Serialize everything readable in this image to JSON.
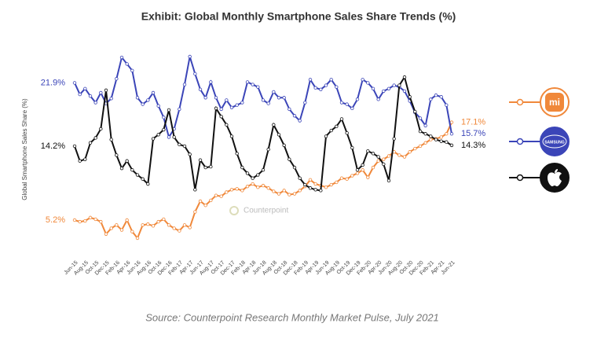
{
  "chart_data": {
    "type": "line",
    "title": "Exhibit: Global Monthly Smartphone Sales Share Trends (%)",
    "y_label": "Global Smartphone Sales Share (%)",
    "watermark": "Counterpoint",
    "source": "Source: Counterpoint Research Monthly Market Pulse, July 2021",
    "categories": [
      "Jun-15",
      null,
      "Aug-15",
      null,
      "Oct-15",
      null,
      "Dec-15",
      null,
      "Feb-16",
      null,
      "Apr-16",
      null,
      "Jun-16",
      null,
      "Aug-16",
      null,
      "Oct-16",
      null,
      "Dec-16",
      null,
      "Feb-17",
      null,
      "Apr-17",
      null,
      "Jun-17",
      null,
      "Aug-17",
      null,
      "Oct-17",
      null,
      "Dec-17",
      null,
      "Feb-18",
      null,
      "Apr-18",
      null,
      "Jun-18",
      null,
      "Aug-18",
      null,
      "Oct-18",
      null,
      "Dec-18",
      null,
      "Feb-19",
      null,
      "Apr-19",
      null,
      "Jun-19",
      null,
      "Aug-19",
      null,
      "Oct-19",
      null,
      "Dec-19",
      null,
      "Feb-20",
      null,
      "Apr-20",
      null,
      "Jun-20",
      null,
      "Aug-20",
      null,
      "Oct-20",
      null,
      "Dec-20",
      null,
      "Feb-21",
      null,
      "Apr-21",
      null,
      "Jun-21"
    ],
    "series": [
      {
        "name": "mi",
        "color": "#f0883a",
        "values": [
          5.2,
          5.0,
          5.1,
          5.5,
          5.3,
          5.0,
          3.5,
          4.2,
          4.6,
          4.0,
          5.2,
          3.8,
          3.0,
          4.6,
          4.7,
          4.5,
          5.0,
          5.3,
          4.6,
          4.2,
          3.9,
          4.6,
          4.3,
          6.2,
          7.5,
          7.0,
          7.6,
          8.2,
          8.1,
          8.6,
          8.9,
          9.0,
          8.8,
          9.3,
          9.6,
          9.2,
          9.4,
          9.1,
          8.7,
          8.4,
          8.8,
          8.3,
          8.4,
          8.8,
          9.3,
          10.1,
          9.6,
          9.4,
          9.2,
          9.5,
          9.8,
          10.3,
          10.2,
          10.6,
          10.9,
          11.3,
          10.4,
          11.6,
          12.4,
          12.6,
          13.0,
          13.5,
          13.1,
          12.9,
          13.5,
          13.9,
          14.2,
          14.6,
          15.0,
          15.1,
          15.3,
          15.7,
          17.1
        ],
        "value_labels": {
          "0": "5.2%",
          "72": "17.1%"
        }
      },
      {
        "name": "SAMSUNG",
        "color": "#3b45b8",
        "values": [
          21.9,
          20.5,
          21.2,
          20.3,
          19.5,
          20.7,
          19.4,
          20.0,
          22.4,
          25.0,
          24.2,
          23.4,
          20.1,
          19.3,
          19.8,
          20.7,
          19.1,
          17.7,
          15.3,
          16.3,
          18.7,
          21.7,
          25.1,
          23.0,
          21.1,
          20.1,
          22.0,
          20.1,
          18.7,
          19.8,
          18.9,
          19.2,
          19.5,
          22.0,
          21.7,
          21.4,
          19.8,
          19.4,
          20.8,
          20.1,
          20.1,
          18.7,
          17.9,
          17.3,
          19.5,
          22.3,
          21.3,
          21.1,
          21.6,
          22.3,
          21.4,
          19.5,
          19.3,
          18.8,
          19.9,
          22.3,
          21.9,
          21.2,
          19.9,
          20.9,
          21.2,
          21.6,
          21.4,
          20.9,
          19.7,
          18.3,
          17.6,
          16.7,
          19.9,
          20.4,
          20.2,
          19.2,
          15.7
        ],
        "value_labels": {
          "0": "21.9%",
          "72": "15.7%"
        }
      },
      {
        "color": "#111111",
        "values": [
          14.2,
          12.4,
          12.6,
          14.6,
          15.2,
          16.3,
          21.0,
          15.0,
          13.1,
          11.5,
          12.4,
          11.3,
          10.7,
          10.2,
          9.6,
          15.1,
          15.6,
          16.2,
          18.6,
          15.3,
          14.4,
          14.2,
          13.2,
          8.9,
          12.5,
          11.6,
          11.7,
          18.8,
          17.8,
          16.8,
          15.4,
          13.3,
          11.6,
          10.9,
          10.3,
          10.7,
          11.3,
          13.8,
          16.8,
          15.6,
          14.3,
          12.6,
          11.6,
          10.3,
          9.5,
          9.1,
          8.9,
          8.8,
          15.4,
          16.1,
          16.6,
          17.5,
          15.8,
          14.0,
          11.3,
          11.9,
          13.6,
          13.3,
          12.9,
          12.0,
          10.0,
          15.1,
          21.6,
          22.6,
          20.2,
          18.4,
          16.0,
          15.7,
          15.4,
          15.0,
          14.8,
          14.7,
          14.3
        ],
        "value_labels": {
          "0": "14.2%",
          "72": "14.3%"
        }
      }
    ]
  }
}
